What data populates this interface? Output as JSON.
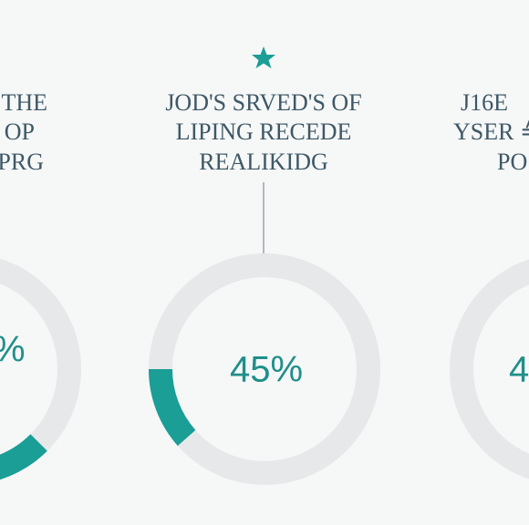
{
  "panels": [
    {
      "title_lines": [
        "THE",
        "OP",
        "PRG"
      ],
      "value_label": "%"
    },
    {
      "title_lines": [
        "JOD'S SRVED'S OF",
        "LIPING RECEDE",
        "REALIKIDG"
      ],
      "value_label": "45%"
    },
    {
      "title_lines": [
        "J16E",
        "YSER ≙",
        "PO"
      ],
      "value_label": "4"
    }
  ]
}
